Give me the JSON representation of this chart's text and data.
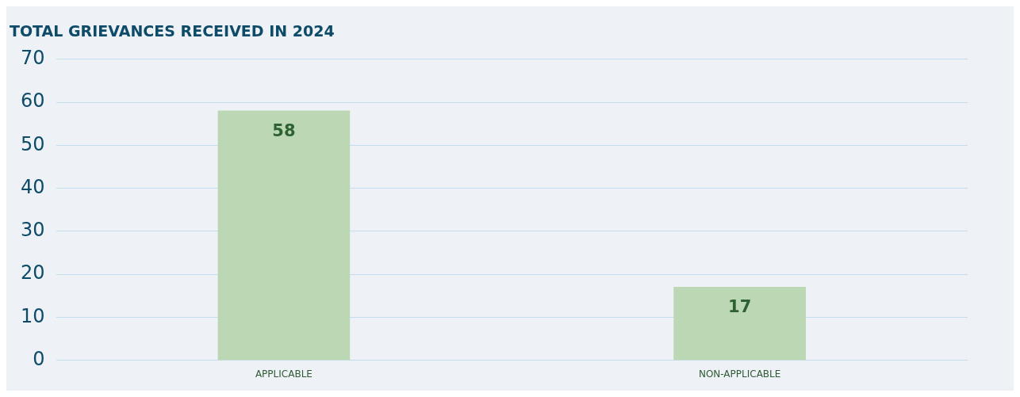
{
  "chart_data": {
    "type": "bar",
    "title": "TOTAL GRIEVANCES RECEIVED IN 2024",
    "categories": [
      "APPLICABLE",
      "NON-APPLICABLE"
    ],
    "values": [
      58,
      17
    ],
    "color": "#bcd7b3",
    "ylim": [
      0,
      70
    ],
    "yticks": [
      0,
      10,
      20,
      30,
      40,
      50,
      60,
      70
    ],
    "grid": "y",
    "data_labels": true,
    "legend": false
  }
}
